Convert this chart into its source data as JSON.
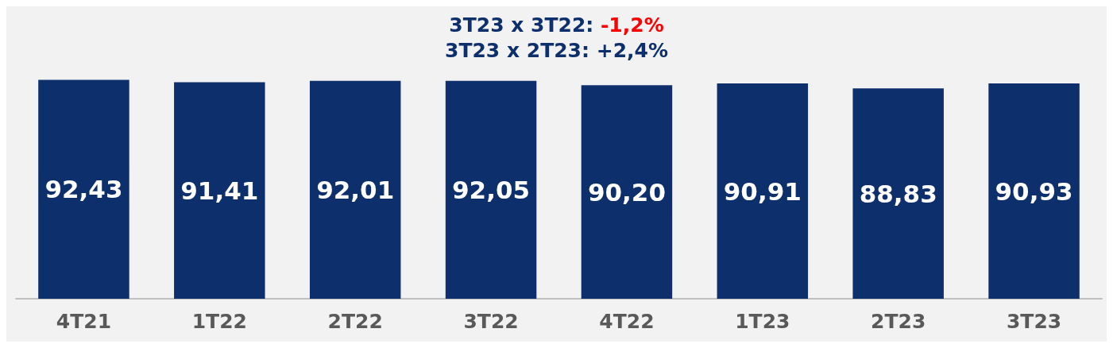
{
  "chart_data": {
    "type": "bar",
    "categories": [
      "4T21",
      "1T22",
      "2T22",
      "3T22",
      "4T22",
      "1T23",
      "2T23",
      "3T23"
    ],
    "values": [
      92.43,
      91.41,
      92.01,
      92.05,
      90.2,
      90.91,
      88.83,
      90.93
    ],
    "value_labels": [
      "92,43",
      "91,41",
      "92,01",
      "92,05",
      "90,20",
      "90,91",
      "88,83",
      "90,93"
    ],
    "color": "#0d2f6b",
    "tick_labels": "x",
    "annotations": [
      "3T23 x 3T22: -1,2%",
      "3T23 x 2T23: +2,4%"
    ]
  }
}
